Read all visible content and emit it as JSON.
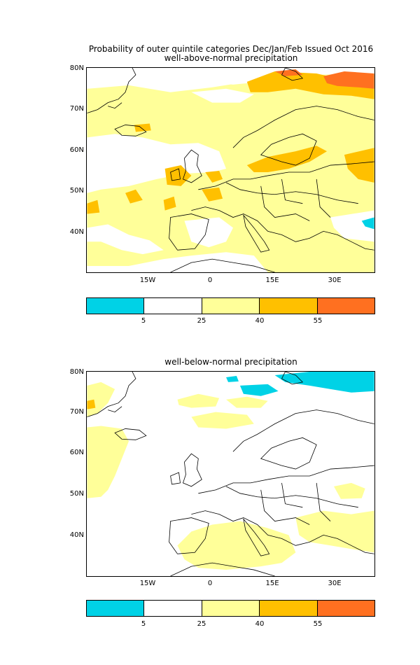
{
  "figure": {
    "title": "Probability of outer quintile categories Dec/Jan/Feb Issued Oct 2016"
  },
  "panels": [
    {
      "subtitle": "well-above-normal precipitation",
      "lat_labels": [
        "80N",
        "70N",
        "60N",
        "50N",
        "40N"
      ],
      "lon_labels": [
        "15W",
        "0",
        "15E",
        "30E"
      ]
    },
    {
      "subtitle": "well-below-normal precipitation",
      "lat_labels": [
        "80N",
        "70N",
        "60N",
        "50N",
        "40N"
      ],
      "lon_labels": [
        "15W",
        "0",
        "15E",
        "30E"
      ]
    }
  ],
  "colorbar": {
    "colors": [
      "#00d2e6",
      "#ffffff",
      "#ffff99",
      "#ffc000",
      "#ff7020"
    ],
    "tick_labels": [
      "5",
      "25",
      "40",
      "55"
    ]
  },
  "map_colors": {
    "yellow": "#ffff99",
    "orange": "#ffc000",
    "dark_orange": "#ff7020",
    "cyan": "#00d2e6",
    "coast": "#000000"
  }
}
